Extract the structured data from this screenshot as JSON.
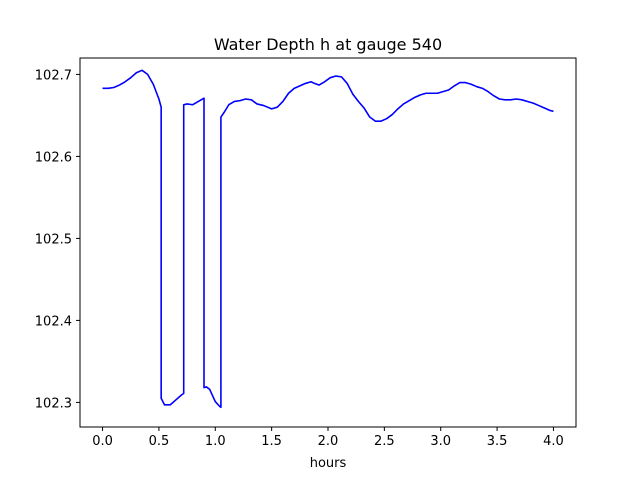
{
  "chart_data": {
    "type": "line",
    "title": "Water Depth h at gauge 540",
    "xlabel": "hours",
    "ylabel": "",
    "xlim": [
      -0.2,
      4.2
    ],
    "ylim": [
      102.27,
      102.72
    ],
    "xticks": [
      0.0,
      0.5,
      1.0,
      1.5,
      2.0,
      2.5,
      3.0,
      3.5,
      4.0
    ],
    "xtick_labels": [
      "0.0",
      "0.5",
      "1.0",
      "1.5",
      "2.0",
      "2.5",
      "3.0",
      "3.5",
      "4.0"
    ],
    "yticks": [
      102.3,
      102.4,
      102.5,
      102.6,
      102.7
    ],
    "ytick_labels": [
      "102.3",
      "102.4",
      "102.5",
      "102.6",
      "102.7"
    ],
    "grid": false,
    "series": [
      {
        "color": "#0000ff",
        "x": [
          0.0,
          0.05,
          0.1,
          0.15,
          0.2,
          0.25,
          0.3,
          0.35,
          0.4,
          0.45,
          0.5,
          0.52,
          0.52,
          0.55,
          0.6,
          0.65,
          0.7,
          0.72,
          0.72,
          0.75,
          0.8,
          0.85,
          0.9,
          0.9,
          0.92,
          0.95,
          1.0,
          1.04,
          1.05,
          1.05,
          1.08,
          1.12,
          1.17,
          1.22,
          1.27,
          1.32,
          1.37,
          1.43,
          1.5,
          1.55,
          1.6,
          1.65,
          1.7,
          1.75,
          1.8,
          1.85,
          1.88,
          1.92,
          1.97,
          2.02,
          2.07,
          2.12,
          2.17,
          2.22,
          2.27,
          2.32,
          2.37,
          2.42,
          2.47,
          2.52,
          2.57,
          2.62,
          2.67,
          2.72,
          2.77,
          2.82,
          2.87,
          2.92,
          2.97,
          3.02,
          3.07,
          3.12,
          3.17,
          3.22,
          3.27,
          3.32,
          3.37,
          3.42,
          3.47,
          3.52,
          3.57,
          3.62,
          3.67,
          3.72,
          3.77,
          3.82,
          3.87,
          3.92,
          3.97,
          4.0
        ],
        "y": [
          102.683,
          102.683,
          102.684,
          102.687,
          102.691,
          102.696,
          102.702,
          102.705,
          102.7,
          102.688,
          102.67,
          102.66,
          102.305,
          102.297,
          102.297,
          102.303,
          102.309,
          102.311,
          102.663,
          102.664,
          102.663,
          102.667,
          102.671,
          102.318,
          102.319,
          102.316,
          102.301,
          102.295,
          102.294,
          102.648,
          102.654,
          102.663,
          102.667,
          102.668,
          102.67,
          102.669,
          102.664,
          102.662,
          102.658,
          102.66,
          102.667,
          102.677,
          102.683,
          102.686,
          102.689,
          102.691,
          102.689,
          102.687,
          102.691,
          102.696,
          102.698,
          102.697,
          102.689,
          102.676,
          102.667,
          102.659,
          102.648,
          102.643,
          102.643,
          102.646,
          102.651,
          102.658,
          102.664,
          102.668,
          102.672,
          102.675,
          102.677,
          102.677,
          102.677,
          102.679,
          102.681,
          102.686,
          102.69,
          102.69,
          102.688,
          102.685,
          102.683,
          102.679,
          102.674,
          102.67,
          102.669,
          102.669,
          102.67,
          102.669,
          102.667,
          102.665,
          102.662,
          102.659,
          102.656,
          102.655
        ]
      }
    ]
  }
}
